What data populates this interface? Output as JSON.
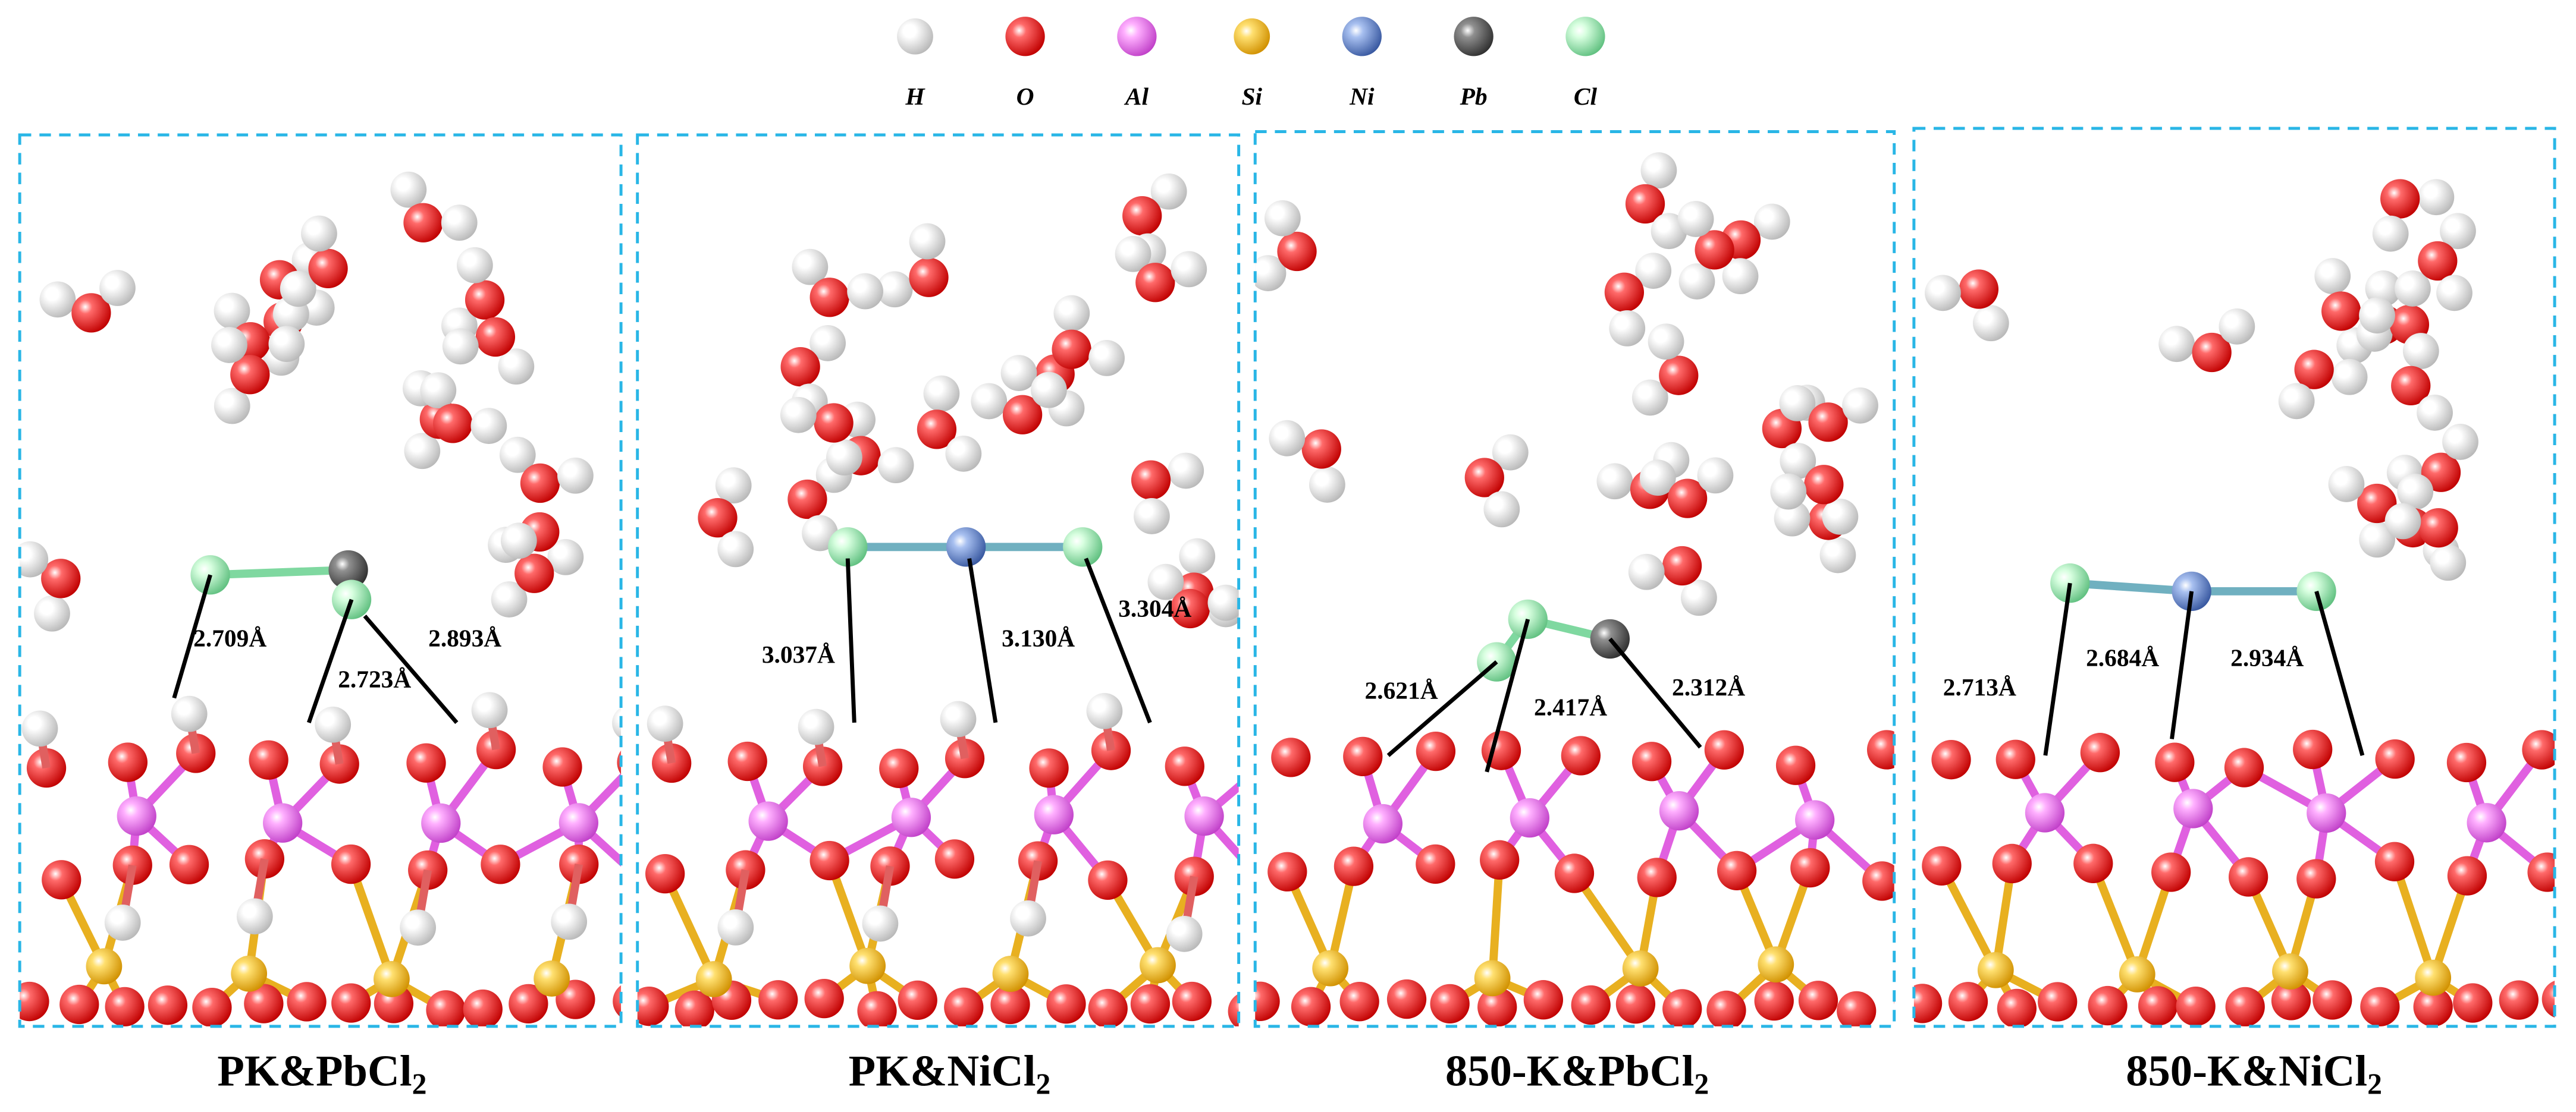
{
  "legend": [
    "H",
    "O",
    "Al",
    "Si",
    "Ni",
    "Pb",
    "Cl"
  ],
  "panels": [
    {
      "title": {
        "main": "PK&PbCl",
        "sub": "2"
      },
      "distances": [
        "2.709Å",
        "2.723Å",
        "2.893Å"
      ]
    },
    {
      "title": {
        "main": "PK&NiCl",
        "sub": "2"
      },
      "distances": [
        "3.037Å",
        "3.130Å",
        "3.304Å"
      ]
    },
    {
      "title": {
        "main": "850-K&PbCl",
        "sub": "2"
      },
      "distances": [
        "2.621Å",
        "2.417Å",
        "2.312Å"
      ]
    },
    {
      "title": {
        "main": "850-K&NiCl",
        "sub": "2"
      },
      "distances": [
        "2.713Å",
        "2.684Å",
        "2.934Å"
      ]
    }
  ]
}
